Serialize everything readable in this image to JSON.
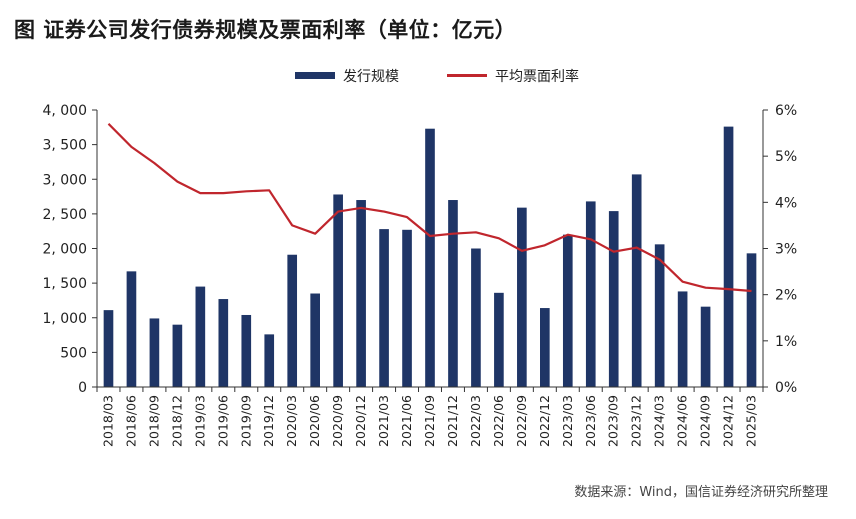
{
  "title": "图  证券公司发行债券规模及票面利率（单位：亿元）",
  "source": "数据来源：Wind，国信证券经济研究所整理",
  "colors": {
    "bar": "#1f3566",
    "line": "#c0262d"
  },
  "chart_data": {
    "type": "bar+line",
    "categories": [
      "2018/03",
      "2018/06",
      "2018/09",
      "2018/12",
      "2019/03",
      "2019/06",
      "2019/09",
      "2019/12",
      "2020/03",
      "2020/06",
      "2020/09",
      "2020/12",
      "2021/03",
      "2021/06",
      "2021/09",
      "2021/12",
      "2022/03",
      "2022/06",
      "2022/09",
      "2022/12",
      "2023/03",
      "2023/06",
      "2023/09",
      "2023/12",
      "2024/03",
      "2024/06",
      "2024/09",
      "2024/12",
      "2025/03"
    ],
    "series": [
      {
        "name": "发行规模",
        "type": "bar",
        "axis": "left",
        "values": [
          1110,
          1670,
          990,
          900,
          1450,
          1270,
          1040,
          760,
          1910,
          1350,
          2780,
          2700,
          2280,
          2270,
          3730,
          2700,
          2000,
          1360,
          2590,
          1140,
          2200,
          2680,
          2540,
          3070,
          2060,
          1380,
          1160,
          3760,
          1930
        ]
      },
      {
        "name": "平均票面利率",
        "type": "line",
        "axis": "right",
        "values": [
          5.7,
          5.2,
          4.85,
          4.45,
          4.2,
          4.2,
          4.24,
          4.26,
          3.5,
          3.32,
          3.8,
          3.88,
          3.8,
          3.68,
          3.27,
          3.32,
          3.35,
          3.22,
          2.95,
          3.07,
          3.3,
          3.2,
          2.93,
          3.02,
          2.76,
          2.28,
          2.15,
          2.12,
          2.08
        ]
      }
    ],
    "left_axis": {
      "ylim": [
        0,
        4000
      ],
      "tick_values": [
        0,
        500,
        1000,
        1500,
        2000,
        2500,
        3000,
        3500,
        4000
      ],
      "tick_labels": [
        "0",
        "500",
        "1, 000",
        "1, 500",
        "2, 000",
        "2, 500",
        "3, 000",
        "3, 500",
        "4, 000"
      ]
    },
    "right_axis": {
      "ylim": [
        0,
        6
      ],
      "tick_values": [
        0,
        1,
        2,
        3,
        4,
        5,
        6
      ],
      "tick_labels": [
        "0%",
        "1%",
        "2%",
        "3%",
        "4%",
        "5%",
        "6%"
      ]
    },
    "legend": {
      "placement": "top-center"
    },
    "grid": false
  }
}
